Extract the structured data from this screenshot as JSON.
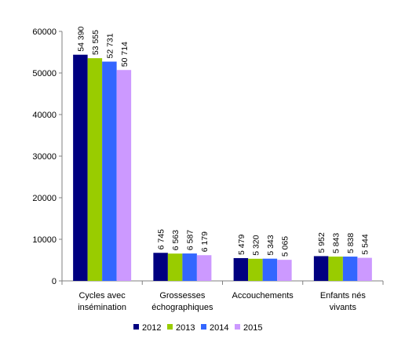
{
  "chart_data": {
    "type": "bar",
    "title": "",
    "xlabel": "",
    "ylabel": "",
    "ylim": [
      0,
      60000
    ],
    "yticks": [
      0,
      10000,
      20000,
      30000,
      40000,
      50000,
      60000
    ],
    "ytick_labels": [
      "0",
      "10000",
      "20000",
      "30000",
      "40000",
      "50000",
      "60000"
    ],
    "grid": false,
    "legend_position": "bottom",
    "categories": [
      [
        "Cycles avec",
        "insémination"
      ],
      [
        "Grossesses",
        "échographiques"
      ],
      [
        "Accouchements"
      ],
      [
        "Enfants nés",
        "vivants"
      ]
    ],
    "series": [
      {
        "name": "2012",
        "color": "#000080",
        "values": [
          54390,
          6745,
          5479,
          5952
        ],
        "labels": [
          "54 390",
          "6 745",
          "5 479",
          "5 952"
        ]
      },
      {
        "name": "2013",
        "color": "#99CC00",
        "values": [
          53555,
          6563,
          5320,
          5843
        ],
        "labels": [
          "53 555",
          "6 563",
          "5 320",
          "5 843"
        ]
      },
      {
        "name": "2014",
        "color": "#3366FF",
        "values": [
          52731,
          6587,
          5343,
          5838
        ],
        "labels": [
          "52 731",
          "6 587",
          "5 343",
          "5 838"
        ]
      },
      {
        "name": "2015",
        "color": "#CC99FF",
        "values": [
          50714,
          6179,
          5065,
          5544
        ],
        "labels": [
          "50 714",
          "6 179",
          "5 065",
          "5 544"
        ]
      }
    ]
  }
}
